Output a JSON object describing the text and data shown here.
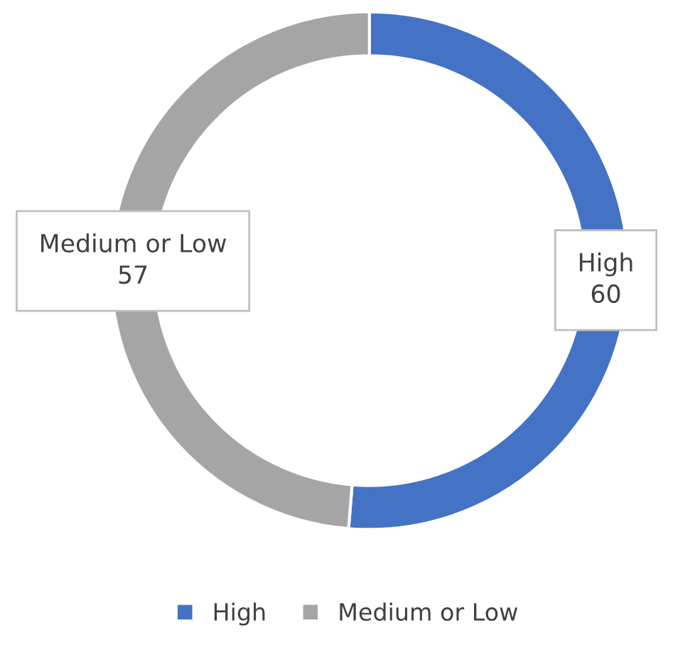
{
  "chart_data": {
    "type": "donut",
    "categories": [
      "High",
      "Medium or Low"
    ],
    "values": [
      60,
      57
    ],
    "colors": [
      "#4472c4",
      "#a5a5a5"
    ],
    "data_labels": true,
    "legend": "bottom"
  }
}
